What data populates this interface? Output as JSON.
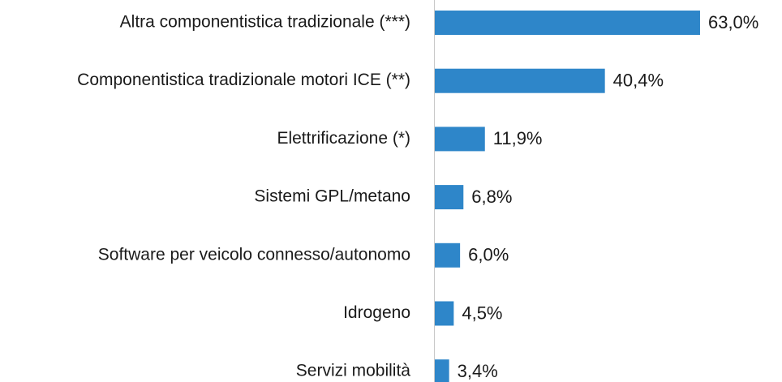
{
  "chart_data": {
    "type": "bar",
    "orientation": "horizontal",
    "categories": [
      "Altra componentistica tradizionale (***)",
      "Componentistica tradizionale motori ICE (**)",
      "Elettrificazione (*)",
      "Sistemi GPL/metano",
      "Software per veicolo connesso/autonomo",
      "Idrogeno",
      "Servizi mobilità"
    ],
    "values": [
      63.0,
      40.4,
      11.9,
      6.8,
      6.0,
      4.5,
      3.4
    ],
    "value_labels": [
      "63,0%",
      "40,4%",
      "11,9%",
      "6,8%",
      "6,0%",
      "4,5%",
      "3,4%"
    ],
    "color": "#2e86c9"
  }
}
